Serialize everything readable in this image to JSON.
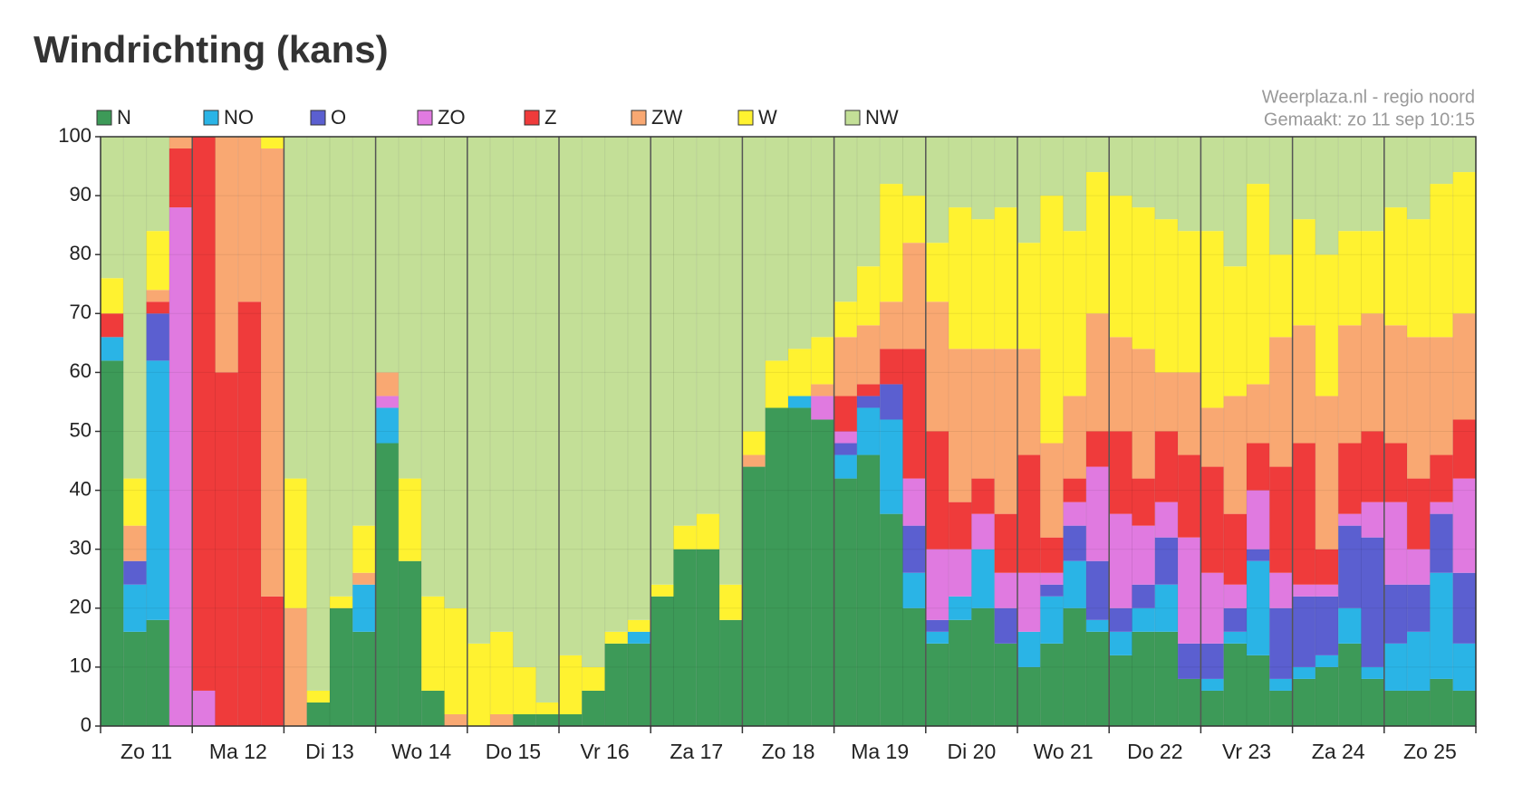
{
  "chart_data": {
    "type": "stacked_bar",
    "title": "Windrichting (kans)",
    "annotations": [
      "Weerplaza.nl - regio noord",
      "Gemaakt: zo 11 sep 10:15"
    ],
    "categories": [
      "Zo 11",
      null,
      null,
      null,
      "Ma 12",
      null,
      null,
      null,
      "Di 13",
      null,
      null,
      null,
      "Wo 14",
      null,
      null,
      null,
      "Do 15",
      null,
      null,
      null,
      "Vr 16",
      null,
      null,
      null,
      "Za 17",
      null,
      null,
      null,
      "Zo 18",
      null,
      null,
      null,
      "Ma 19",
      null,
      null,
      null,
      "Di 20",
      null,
      null,
      null,
      "Wo 21",
      null,
      null,
      null,
      "Do 22",
      null,
      null,
      null,
      "Vr 23",
      null,
      null,
      null,
      "Za 24",
      null,
      null,
      null,
      "Zo 25",
      null,
      null,
      null
    ],
    "series": [
      {
        "name": "N",
        "color": "#3d9a58",
        "values": [
          62,
          16,
          18,
          0,
          0,
          0,
          0,
          0,
          0,
          4,
          20,
          16,
          48,
          28,
          6,
          0,
          0,
          0,
          2,
          2,
          2,
          6,
          14,
          14,
          22,
          30,
          30,
          18,
          44,
          54,
          54,
          52,
          42,
          46,
          36,
          20,
          14,
          18,
          20,
          14,
          10,
          14,
          20,
          16,
          12,
          16,
          16,
          8,
          6,
          14,
          12,
          6,
          8,
          10,
          14,
          8,
          6,
          6,
          8,
          6
        ]
      },
      {
        "name": "NO",
        "color": "#2ab4e6",
        "values": [
          4,
          8,
          44,
          0,
          0,
          0,
          0,
          0,
          0,
          0,
          0,
          8,
          6,
          0,
          0,
          0,
          0,
          0,
          0,
          0,
          0,
          0,
          0,
          2,
          0,
          0,
          0,
          0,
          0,
          0,
          2,
          0,
          4,
          8,
          16,
          6,
          2,
          4,
          10,
          0,
          6,
          8,
          8,
          2,
          4,
          4,
          8,
          0,
          2,
          2,
          16,
          2,
          2,
          2,
          6,
          2,
          8,
          10,
          18,
          8
        ]
      },
      {
        "name": "O",
        "color": "#5b5fd0",
        "values": [
          0,
          4,
          8,
          0,
          0,
          0,
          0,
          0,
          0,
          0,
          0,
          0,
          0,
          0,
          0,
          0,
          0,
          0,
          0,
          0,
          0,
          0,
          0,
          0,
          0,
          0,
          0,
          0,
          0,
          0,
          0,
          0,
          2,
          2,
          6,
          8,
          2,
          0,
          0,
          6,
          0,
          2,
          6,
          10,
          4,
          4,
          8,
          6,
          6,
          4,
          2,
          12,
          12,
          10,
          14,
          22,
          10,
          8,
          10,
          12
        ]
      },
      {
        "name": "ZO",
        "color": "#e07ae0",
        "values": [
          0,
          0,
          0,
          88,
          6,
          0,
          0,
          0,
          0,
          0,
          0,
          0,
          2,
          0,
          0,
          0,
          0,
          0,
          0,
          0,
          0,
          0,
          0,
          0,
          0,
          0,
          0,
          0,
          0,
          0,
          0,
          4,
          2,
          0,
          0,
          8,
          12,
          8,
          6,
          6,
          10,
          2,
          4,
          16,
          16,
          10,
          6,
          18,
          12,
          4,
          10,
          6,
          2,
          2,
          2,
          6,
          14,
          6,
          2,
          16
        ]
      },
      {
        "name": "Z",
        "color": "#ef3b3b",
        "values": [
          4,
          0,
          2,
          10,
          94,
          60,
          72,
          22,
          0,
          0,
          0,
          0,
          0,
          0,
          0,
          0,
          0,
          0,
          0,
          0,
          0,
          0,
          0,
          0,
          0,
          0,
          0,
          0,
          0,
          0,
          0,
          0,
          6,
          2,
          6,
          22,
          20,
          8,
          6,
          10,
          20,
          6,
          4,
          6,
          14,
          8,
          12,
          14,
          18,
          12,
          8,
          18,
          24,
          6,
          12,
          12,
          10,
          12,
          8,
          10
        ]
      },
      {
        "name": "ZW",
        "color": "#f9a872",
        "values": [
          0,
          6,
          2,
          2,
          0,
          40,
          28,
          76,
          20,
          0,
          0,
          2,
          4,
          0,
          0,
          2,
          0,
          2,
          0,
          0,
          0,
          0,
          0,
          0,
          0,
          0,
          0,
          0,
          2,
          0,
          0,
          2,
          10,
          10,
          8,
          18,
          22,
          26,
          22,
          28,
          18,
          16,
          14,
          20,
          16,
          22,
          10,
          14,
          10,
          20,
          10,
          22,
          20,
          26,
          20,
          20,
          20,
          24,
          20,
          18
        ]
      },
      {
        "name": "W",
        "color": "#fff230",
        "values": [
          6,
          8,
          10,
          0,
          0,
          0,
          0,
          2,
          22,
          2,
          2,
          8,
          0,
          14,
          16,
          18,
          14,
          14,
          8,
          2,
          10,
          4,
          2,
          2,
          2,
          4,
          6,
          6,
          4,
          8,
          8,
          8,
          6,
          10,
          20,
          8,
          10,
          24,
          22,
          24,
          18,
          42,
          28,
          24,
          24,
          24,
          26,
          24,
          30,
          22,
          34,
          14,
          18,
          24,
          16,
          14,
          20,
          20,
          26,
          24
        ]
      },
      {
        "name": "NW",
        "color": "#c3df97",
        "values": [
          24,
          58,
          16,
          0,
          0,
          0,
          0,
          0,
          58,
          94,
          78,
          66,
          40,
          58,
          78,
          80,
          86,
          84,
          90,
          96,
          88,
          90,
          84,
          82,
          76,
          66,
          64,
          76,
          50,
          38,
          36,
          34,
          28,
          22,
          8,
          10,
          18,
          12,
          14,
          12,
          18,
          10,
          16,
          6,
          10,
          12,
          14,
          16,
          16,
          22,
          8,
          20,
          14,
          20,
          16,
          16,
          12,
          14,
          8,
          6
        ]
      }
    ],
    "ylim": [
      0,
      100
    ],
    "yticks": [
      0,
      10,
      20,
      30,
      40,
      50,
      60,
      70,
      80,
      90,
      100
    ],
    "grid": true,
    "legend": "top"
  }
}
